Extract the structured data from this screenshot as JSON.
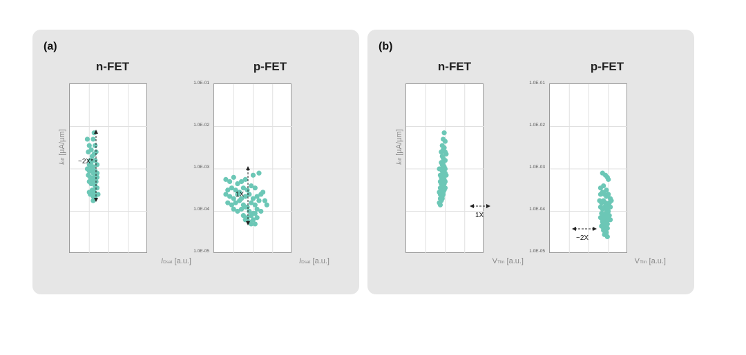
{
  "panels": {
    "a": {
      "label": "(a)"
    },
    "b": {
      "label": "(b)"
    }
  },
  "axes": {
    "ylabel_symbol": "I",
    "ylabel_sub": "off",
    "ylabel_unit": " [µA/µm]",
    "xlabel_idsat_symbol": "I",
    "xlabel_idsat_sub": "Dsat",
    "xlabel_vtlin_symbol": "V",
    "xlabel_vtlin_sub": "Tlin",
    "xlabel_unit": " [a.u.]",
    "yticks": [
      "1.0E-01",
      "1.0E-02",
      "1.0E-03",
      "1.0E-04",
      "1.0E-05"
    ]
  },
  "annotations": {
    "a_nfet": "~2X*",
    "a_pfet": "1X",
    "b_nfet": "1X",
    "b_pfet": "~2X"
  },
  "colors": {
    "dot": "#6cc7b6",
    "grid": "#e0e0e0",
    "frame": "#9a9a9a"
  },
  "chart_data": [
    {
      "type": "scatter",
      "panel": "(a)",
      "title": "n-FET",
      "xlabel": "IDsat [a.u.]",
      "ylabel": "Ioff [µA/µm]",
      "xlim": [
        0,
        4
      ],
      "ylim": [
        -5,
        -1
      ],
      "yscale": "log",
      "x": [
        0.9,
        1.0,
        0.95,
        1.1,
        1.2,
        1.3,
        1.05,
        1.15,
        1.25,
        1.35,
        1.0,
        1.1,
        1.2,
        1.3,
        1.4,
        0.9,
        1.0,
        1.1,
        1.2,
        1.3,
        1.4,
        0.95,
        1.05,
        1.15,
        1.25,
        1.35,
        1.0,
        1.1,
        1.2,
        1.3,
        1.4,
        1.15,
        1.25,
        1.35,
        1.05,
        1.2,
        1.3,
        1.45,
        1.4,
        1.1,
        1.0,
        1.2,
        1.3,
        1.25,
        1.35
      ],
      "y": [
        -2.3,
        -2.45,
        -2.6,
        -2.55,
        -2.3,
        -2.45,
        -2.8,
        -2.7,
        -2.65,
        -2.6,
        -2.9,
        -2.85,
        -2.95,
        -2.8,
        -2.9,
        -3.0,
        -3.05,
        -3.0,
        -3.1,
        -3.05,
        -3.1,
        -3.15,
        -3.2,
        -3.25,
        -3.2,
        -3.15,
        -3.3,
        -3.35,
        -3.3,
        -3.4,
        -3.45,
        -3.5,
        -3.55,
        -3.45,
        -3.6,
        -3.65,
        -3.7,
        -3.6,
        -3.2,
        -3.0,
        -3.55,
        -3.75,
        -3.65,
        -2.15,
        -3.3
      ]
    },
    {
      "type": "scatter",
      "panel": "(a)",
      "title": "p-FET",
      "xlabel": "IDsat [a.u.]",
      "ylabel": "",
      "xlim": [
        0,
        4
      ],
      "ylim": [
        -5,
        -1
      ],
      "yscale": "log",
      "yticks": [
        "1.0E-01",
        "1.0E-02",
        "1.0E-03",
        "1.0E-04",
        "1.0E-05"
      ],
      "x": [
        0.6,
        0.8,
        1.0,
        1.2,
        1.4,
        1.6,
        2.0,
        2.3,
        0.7,
        0.9,
        1.1,
        1.3,
        1.5,
        1.7,
        1.9,
        2.1,
        2.5,
        0.6,
        0.8,
        1.0,
        1.2,
        1.4,
        1.6,
        1.8,
        2.0,
        2.2,
        2.4,
        2.6,
        0.7,
        0.9,
        1.1,
        1.3,
        1.5,
        1.7,
        1.9,
        2.1,
        2.3,
        2.7,
        1.0,
        1.2,
        1.4,
        1.6,
        1.8,
        2.0,
        2.2,
        2.4,
        1.5,
        1.7,
        1.9,
        2.1,
        1.6,
        1.8,
        2.0,
        2.2,
        1.9,
        2.1
      ],
      "y": [
        -3.25,
        -3.3,
        -3.2,
        -3.35,
        -3.3,
        -3.25,
        -3.15,
        -3.1,
        -3.5,
        -3.45,
        -3.5,
        -3.55,
        -3.45,
        -3.5,
        -3.4,
        -3.45,
        -3.55,
        -3.6,
        -3.65,
        -3.7,
        -3.6,
        -3.7,
        -3.65,
        -3.6,
        -3.7,
        -3.65,
        -3.6,
        -3.75,
        -3.8,
        -3.85,
        -3.8,
        -3.75,
        -3.85,
        -3.9,
        -3.8,
        -3.85,
        -3.75,
        -3.85,
        -3.95,
        -4.0,
        -3.95,
        -3.9,
        -4.0,
        -4.05,
        -3.95,
        -4.0,
        -4.1,
        -4.15,
        -4.1,
        -4.05,
        -4.2,
        -4.25,
        -4.2,
        -4.15,
        -4.3,
        -4.3
      ]
    },
    {
      "type": "scatter",
      "panel": "(b)",
      "title": "n-FET",
      "xlabel": "VTlin [a.u.]",
      "ylabel": "Ioff [µA/µm]",
      "xlim": [
        0,
        4
      ],
      "ylim": [
        -5,
        -1
      ],
      "yscale": "log",
      "x": [
        1.95,
        1.9,
        2.0,
        1.85,
        1.95,
        1.9,
        2.0,
        2.05,
        1.85,
        1.9,
        1.95,
        2.0,
        1.8,
        1.85,
        1.9,
        1.95,
        2.0,
        1.8,
        1.85,
        1.9,
        1.95,
        2.0,
        2.05,
        1.75,
        1.8,
        1.85,
        1.9,
        1.95,
        1.75,
        1.8,
        1.85,
        1.9,
        1.95,
        2.0,
        1.75,
        1.8,
        1.85,
        1.9,
        1.95,
        1.7,
        1.75,
        1.8,
        1.85,
        1.9,
        1.75,
        1.8,
        1.85,
        1.7,
        1.75,
        1.8,
        1.9,
        2.0,
        1.7,
        1.8
      ],
      "y": [
        -2.15,
        -2.3,
        -2.35,
        -2.45,
        -2.5,
        -2.55,
        -2.6,
        -2.65,
        -2.7,
        -2.75,
        -2.8,
        -2.8,
        -2.85,
        -2.9,
        -2.9,
        -2.95,
        -3.0,
        -3.0,
        -3.05,
        -3.05,
        -3.1,
        -3.1,
        -3.15,
        -3.15,
        -3.2,
        -3.25,
        -3.2,
        -3.25,
        -3.3,
        -3.35,
        -3.3,
        -3.4,
        -3.35,
        -3.45,
        -3.45,
        -3.5,
        -3.45,
        -3.55,
        -3.5,
        -3.55,
        -3.6,
        -3.6,
        -3.65,
        -3.6,
        -3.7,
        -3.75,
        -3.7,
        -3.8,
        -3.85,
        -3.65,
        -3.4,
        -3.3,
        -3.0,
        -2.6
      ]
    },
    {
      "type": "scatter",
      "panel": "(b)",
      "title": "p-FET",
      "xlabel": "VTlin [a.u.]",
      "ylabel": "",
      "xlim": [
        0,
        4
      ],
      "ylim": [
        -5,
        -1
      ],
      "yscale": "log",
      "yticks": [
        "1.0E-01",
        "1.0E-02",
        "1.0E-03",
        "1.0E-04",
        "1.0E-05"
      ],
      "x": [
        2.6,
        2.75,
        2.9,
        2.7,
        2.85,
        2.95,
        3.0,
        2.6,
        2.7,
        2.8,
        2.9,
        3.0,
        3.1,
        2.55,
        2.65,
        2.75,
        2.85,
        2.95,
        3.05,
        3.15,
        2.6,
        2.7,
        2.8,
        2.9,
        3.0,
        3.1,
        2.65,
        2.75,
        2.85,
        2.95,
        3.05,
        2.6,
        2.7,
        2.8,
        2.9,
        3.0,
        3.1,
        2.7,
        2.8,
        2.9,
        3.0,
        2.65,
        2.75,
        2.85,
        2.95,
        2.75,
        2.85,
        2.95,
        2.8,
        2.9,
        2.85,
        2.95
      ],
      "y": [
        -3.45,
        -3.4,
        -3.5,
        -3.1,
        -3.15,
        -3.2,
        -3.25,
        -3.6,
        -3.55,
        -3.6,
        -3.65,
        -3.6,
        -3.7,
        -3.75,
        -3.8,
        -3.75,
        -3.8,
        -3.85,
        -3.8,
        -3.75,
        -3.9,
        -3.95,
        -3.9,
        -3.95,
        -4.0,
        -3.9,
        -4.05,
        -4.1,
        -4.05,
        -4.0,
        -4.1,
        -4.15,
        -4.2,
        -4.15,
        -4.2,
        -4.1,
        -4.2,
        -4.25,
        -4.3,
        -4.25,
        -4.2,
        -4.35,
        -4.4,
        -4.35,
        -4.3,
        -4.45,
        -4.5,
        -4.4,
        -4.55,
        -4.5,
        -4.3,
        -4.6
      ]
    }
  ]
}
